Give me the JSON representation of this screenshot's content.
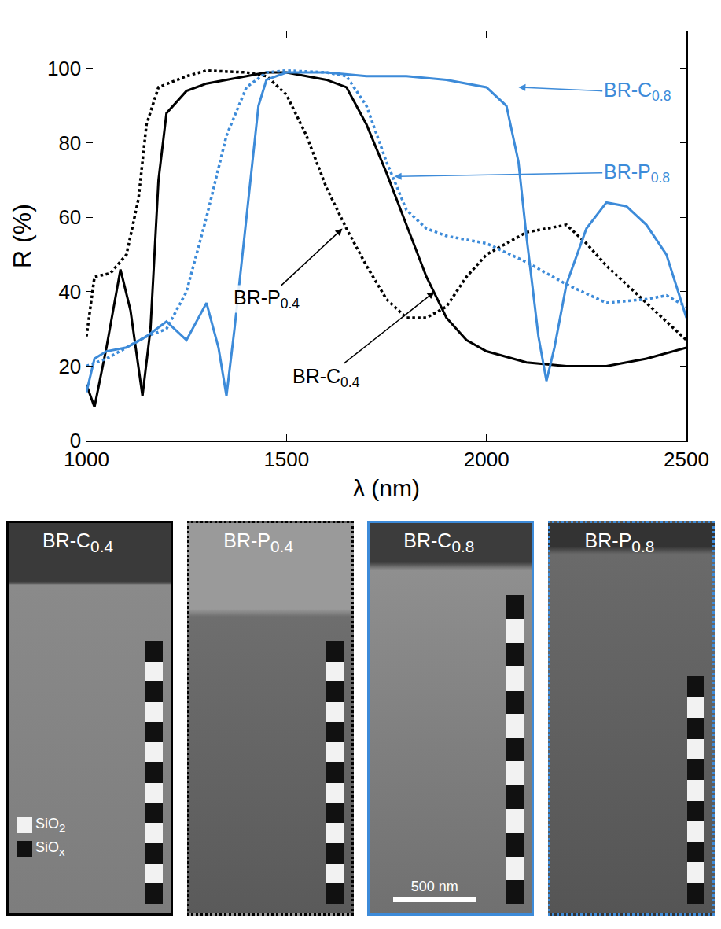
{
  "chart_data": {
    "type": "line",
    "x_label": "λ (nm)",
    "y_label": "R (%)",
    "xlim": [
      1000,
      2500
    ],
    "xticks": [
      1000,
      1500,
      2000,
      2500
    ],
    "ylim": [
      0,
      110
    ],
    "yticks": [
      0,
      20,
      40,
      60,
      80,
      100
    ],
    "grid": false,
    "series": [
      {
        "name": "BR-C0.4",
        "color": "#000000",
        "line_style": "solid",
        "x": [
          1000,
          1020,
          1050,
          1085,
          1110,
          1140,
          1160,
          1180,
          1200,
          1250,
          1300,
          1400,
          1450,
          1500,
          1600,
          1650,
          1700,
          1750,
          1800,
          1850,
          1900,
          1950,
          2000,
          2100,
          2200,
          2300,
          2400,
          2500
        ],
        "values": [
          15,
          9,
          25,
          46,
          35,
          12,
          30,
          70,
          88,
          94,
          96,
          98,
          99,
          99,
          97,
          95,
          85,
          72,
          58,
          44,
          33,
          27,
          24,
          21,
          20,
          20,
          22,
          25
        ]
      },
      {
        "name": "BR-P0.4",
        "color": "#000000",
        "line_style": "dot",
        "x": [
          1000,
          1020,
          1060,
          1100,
          1130,
          1150,
          1180,
          1250,
          1300,
          1400,
          1450,
          1500,
          1550,
          1600,
          1650,
          1700,
          1750,
          1800,
          1850,
          1900,
          1950,
          2000,
          2100,
          2200,
          2250,
          2300,
          2400,
          2500
        ],
        "values": [
          28,
          44,
          45,
          50,
          65,
          85,
          95,
          98,
          99.5,
          99,
          98,
          93,
          82,
          68,
          57,
          47,
          38,
          33,
          33,
          36,
          44,
          50,
          56,
          58,
          53,
          47,
          37,
          27
        ]
      },
      {
        "name": "BR-C0.8",
        "color": "#3d8bd9",
        "line_style": "solid",
        "x": [
          1000,
          1020,
          1050,
          1100,
          1150,
          1200,
          1250,
          1300,
          1330,
          1350,
          1370,
          1400,
          1430,
          1450,
          1500,
          1600,
          1700,
          1800,
          1900,
          2000,
          2050,
          2080,
          2100,
          2130,
          2150,
          2170,
          2200,
          2250,
          2300,
          2350,
          2400,
          2450,
          2500
        ],
        "values": [
          13,
          22,
          24,
          25,
          28,
          32,
          27,
          37,
          25,
          12,
          30,
          60,
          90,
          97,
          99,
          99,
          98,
          98,
          97,
          95,
          90,
          75,
          55,
          28,
          16,
          25,
          42,
          57,
          64,
          63,
          58,
          50,
          33
        ]
      },
      {
        "name": "BR-P0.8",
        "color": "#3d8bd9",
        "line_style": "dot",
        "x": [
          1000,
          1050,
          1100,
          1150,
          1200,
          1250,
          1300,
          1350,
          1400,
          1450,
          1500,
          1600,
          1650,
          1700,
          1750,
          1800,
          1850,
          1900,
          1950,
          2000,
          2100,
          2200,
          2300,
          2400,
          2450,
          2500
        ],
        "values": [
          20,
          22,
          25,
          28,
          30,
          40,
          60,
          82,
          95,
          99,
          99.5,
          99,
          98,
          90,
          75,
          62,
          57,
          55,
          54,
          53,
          48,
          42,
          37,
          38,
          39,
          36
        ]
      }
    ]
  },
  "panels": [
    {
      "title": "BR-C0.4",
      "border_color": "#000000",
      "border_style": "solid",
      "layers": [
        "SiOx",
        "SiO2",
        "SiOx",
        "SiO2",
        "SiOx",
        "SiO2",
        "SiOx",
        "SiO2",
        "SiOx",
        "SiO2",
        "SiOx",
        "SiO2",
        "SiOx"
      ]
    },
    {
      "title": "BR-P0.4",
      "border_color": "#000000",
      "border_style": "dotted",
      "layers": [
        "SiOx",
        "SiO2",
        "SiOx",
        "SiO2",
        "SiOx",
        "SiO2",
        "SiOx",
        "SiO2",
        "SiOx",
        "SiO2",
        "SiOx",
        "SiO2",
        "SiOx"
      ]
    },
    {
      "title": "BR-C0.8",
      "border_color": "#3d8bd9",
      "border_style": "solid",
      "layers": [
        "SiOx",
        "SiO2",
        "SiOx",
        "SiO2",
        "SiOx",
        "SiO2",
        "SiOx",
        "SiO2",
        "SiOx",
        "SiO2",
        "SiOx",
        "SiO2",
        "SiOx"
      ]
    },
    {
      "title": "BR-P0.8",
      "border_color": "#3d8bd9",
      "border_style": "dotted",
      "layers": [
        "SiOx",
        "SiO2",
        "SiOx",
        "SiO2",
        "SiOx",
        "SiO2",
        "SiOx",
        "SiO2",
        "SiOx",
        "SiO2",
        "SiOx"
      ]
    }
  ],
  "layer_legend": [
    "SiO2",
    "SiOx"
  ],
  "scale_bar": "500 nm"
}
